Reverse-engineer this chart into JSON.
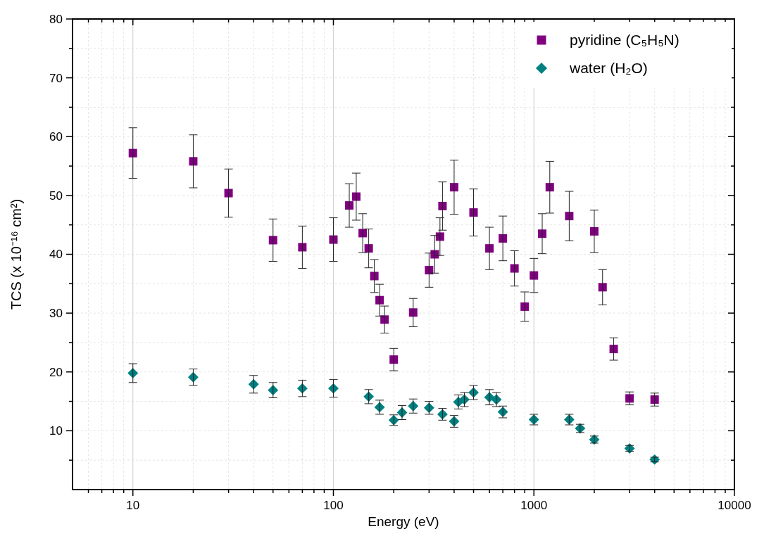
{
  "chart_data": {
    "type": "scatter",
    "xlabel": "Energy (eV)",
    "ylabel": "TCS (x 10⁻¹⁶ cm²)",
    "log": "x",
    "grid": true,
    "legend": "top right",
    "xlim": [
      5,
      10000
    ],
    "xticks": [
      {
        "value": 6,
        "label": null
      },
      {
        "value": 7,
        "label": null
      },
      {
        "value": 8,
        "label": null
      },
      {
        "value": 9,
        "label": null
      },
      10,
      {
        "value": 20,
        "label": null
      },
      {
        "value": 30,
        "label": null
      },
      {
        "value": 40,
        "label": null
      },
      {
        "value": 50,
        "label": null
      },
      {
        "value": 60,
        "label": null
      },
      {
        "value": 70,
        "label": null
      },
      {
        "value": 80,
        "label": null
      },
      {
        "value": 90,
        "label": null
      },
      100,
      {
        "value": 200,
        "label": null
      },
      {
        "value": 300,
        "label": null
      },
      {
        "value": 400,
        "label": null
      },
      {
        "value": 500,
        "label": null
      },
      {
        "value": 600,
        "label": null
      },
      {
        "value": 700,
        "label": null
      },
      {
        "value": 800,
        "label": null
      },
      {
        "value": 900,
        "label": null
      },
      1000,
      {
        "value": 2000,
        "label": null
      },
      {
        "value": 3000,
        "label": null
      },
      {
        "value": 4000,
        "label": null
      },
      {
        "value": 5000,
        "label": null
      },
      {
        "value": 6000,
        "label": null
      },
      {
        "value": 7000,
        "label": null
      },
      {
        "value": 8000,
        "label": null
      },
      {
        "value": 9000,
        "label": null
      },
      10000
    ],
    "ylim": [
      0,
      80
    ],
    "yticks": [
      {
        "value": 5,
        "label": null
      },
      10,
      {
        "value": 15,
        "label": null
      },
      20,
      {
        "value": 25,
        "label": null
      },
      30,
      {
        "value": 35,
        "label": null
      },
      40,
      {
        "value": 45,
        "label": null
      },
      50,
      {
        "value": 55,
        "label": null
      },
      60,
      {
        "value": 65,
        "label": null
      },
      70,
      {
        "value": 75,
        "label": null
      },
      80
    ],
    "series": [
      {
        "name": "pyridine (C₅H₅N)",
        "color": "#800080",
        "marker": "square",
        "x": [
          10,
          20,
          30,
          50,
          70,
          100,
          120,
          130,
          140,
          150,
          160,
          170,
          180,
          200,
          250,
          300,
          320,
          340,
          350,
          400,
          500,
          600,
          700,
          800,
          900,
          1000,
          1100,
          1200,
          1500,
          2000,
          2200,
          2500,
          3000,
          4000
        ],
        "values": [
          57.2,
          55.8,
          50.4,
          42.4,
          41.2,
          42.5,
          48.3,
          49.8,
          43.6,
          41.0,
          36.3,
          32.2,
          28.9,
          22.1,
          30.1,
          37.3,
          40.0,
          43.0,
          48.2,
          51.4,
          47.1,
          41.0,
          42.7,
          37.6,
          31.1,
          36.4,
          43.5,
          51.4,
          46.5,
          43.9,
          34.4,
          23.9,
          15.5,
          15.3
        ],
        "errors": [
          4.3,
          4.5,
          4.1,
          3.6,
          3.6,
          3.7,
          3.7,
          4,
          3.3,
          3.3,
          2.8,
          2.7,
          2.3,
          1.9,
          2.4,
          2.9,
          3.2,
          3.2,
          4.1,
          4.6,
          4.0,
          3.6,
          3.8,
          3,
          2.5,
          2.9,
          3.4,
          4.4,
          4.2,
          3.6,
          3,
          1.9,
          1.1,
          1.1
        ]
      },
      {
        "name": "water (H₂O)",
        "color": "#008080",
        "marker": "diamond",
        "x": [
          10,
          20,
          40,
          50,
          70,
          100,
          150,
          170,
          200,
          220,
          250,
          300,
          350,
          400,
          420,
          450,
          500,
          600,
          650,
          700,
          1000,
          1500,
          1700,
          2000,
          3000,
          4000
        ],
        "values": [
          19.8,
          19.1,
          17.9,
          16.9,
          17.2,
          17.2,
          15.8,
          14.0,
          11.8,
          13.1,
          14.2,
          13.9,
          12.8,
          11.6,
          14.9,
          15.3,
          16.5,
          15.7,
          15.3,
          13.2,
          11.9,
          11.9,
          10.4,
          8.5,
          7.0,
          5.1
        ],
        "errors": [
          1.6,
          1.4,
          1.5,
          1.3,
          1.4,
          1.5,
          1.2,
          1.2,
          0.9,
          1.2,
          1.2,
          1.1,
          1.0,
          1.0,
          1.2,
          1.2,
          1.2,
          1.3,
          1.2,
          1.0,
          0.9,
          0.9,
          0.7,
          0.6,
          0.5,
          0.4
        ]
      }
    ]
  }
}
